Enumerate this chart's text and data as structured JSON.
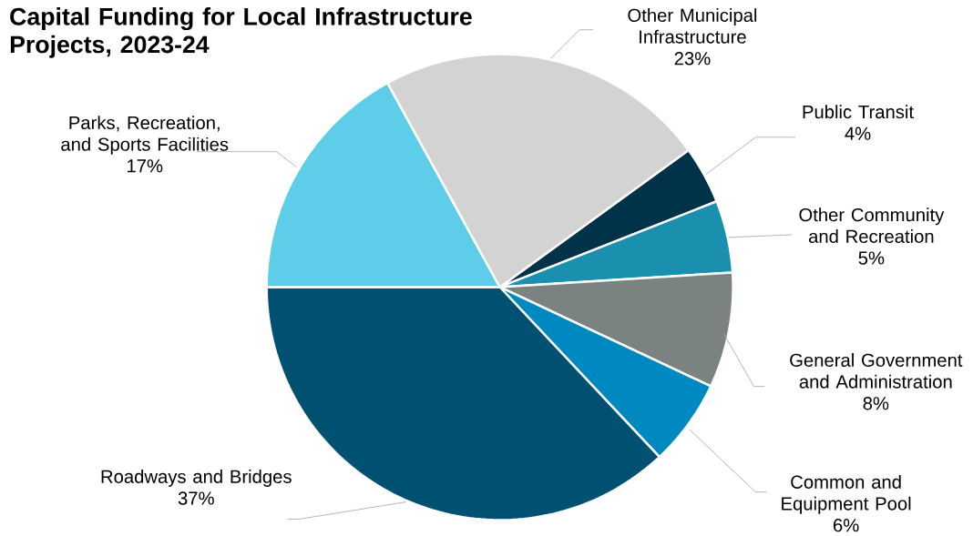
{
  "chart_data": {
    "type": "pie",
    "title": "Capital Funding for Local Infrastructure Projects, 2023-24",
    "categories": [
      "Public Transit",
      "Other Community and Recreation",
      "General Government and Administration",
      "Common and Equipment Pool",
      "Roadways and Bridges",
      "Parks, Recreation, and Sports Facilities",
      "Other Municipal Infrastructure"
    ],
    "values": [
      4,
      5,
      8,
      6,
      37,
      17,
      23
    ],
    "value_labels": [
      "4%",
      "5%",
      "8%",
      "6%",
      "37%",
      "17%",
      "23%"
    ],
    "colors": [
      "#00324a",
      "#1b8fae",
      "#7a837f",
      "#0088c0",
      "#005072",
      "#5ecde9",
      "#d3d3d3"
    ]
  }
}
